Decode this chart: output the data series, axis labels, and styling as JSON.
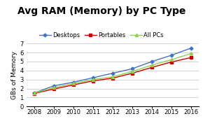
{
  "title": "Avg RAM (Memory) by PC Type",
  "ylabel": "GBs of Memory",
  "years": [
    2008,
    2009,
    2010,
    2011,
    2012,
    2013,
    2014,
    2015,
    2016
  ],
  "desktops": [
    1.5,
    2.3,
    2.7,
    3.2,
    3.7,
    4.2,
    5.0,
    5.7,
    6.5
  ],
  "portables": [
    1.45,
    1.95,
    2.4,
    2.85,
    3.15,
    3.7,
    4.35,
    4.95,
    5.45
  ],
  "all_pcs": [
    1.5,
    2.1,
    2.55,
    3.0,
    3.3,
    3.9,
    4.6,
    5.2,
    5.9
  ],
  "desktop_color": "#4472C4",
  "portable_color": "#CC0000",
  "allpcs_color": "#92D050",
  "ylim": [
    0,
    7
  ],
  "yticks": [
    0,
    1,
    2,
    3,
    4,
    5,
    6,
    7
  ],
  "bg_color": "#FFFFFF",
  "grid_color": "#C0C0C0",
  "title_fontsize": 10,
  "label_fontsize": 6.5,
  "tick_fontsize": 6,
  "legend_fontsize": 6
}
